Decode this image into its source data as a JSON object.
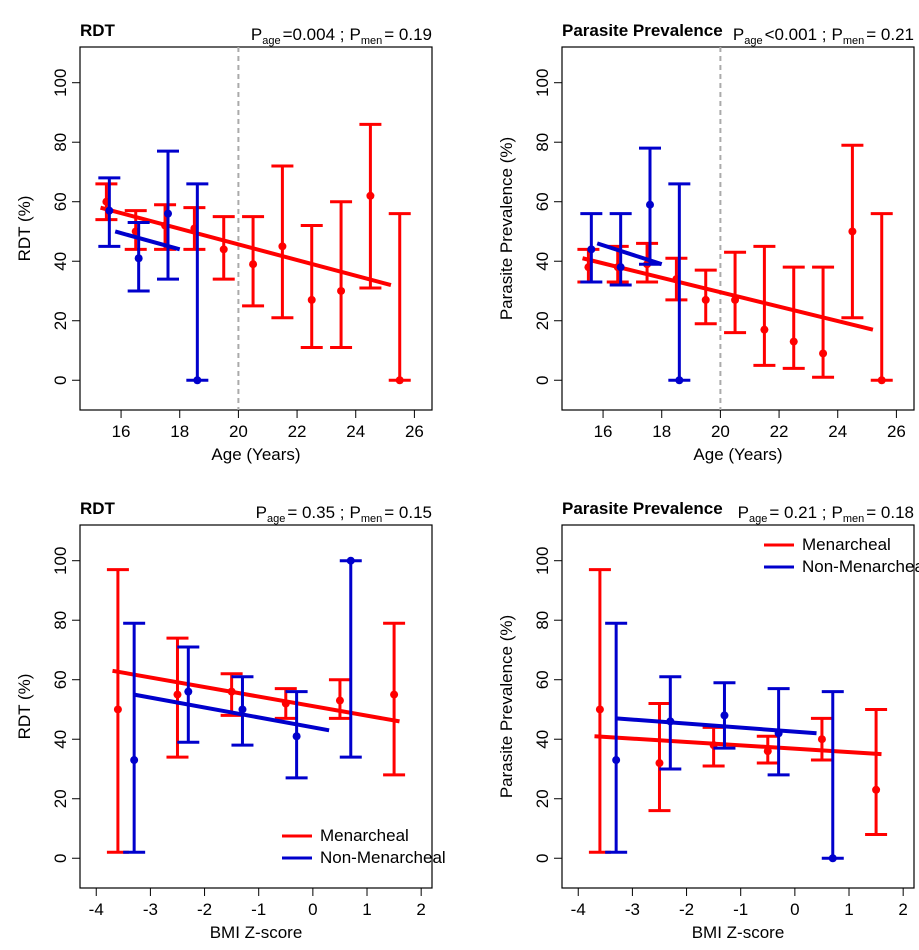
{
  "chart_data": [
    {
      "type": "errorbar",
      "title": "RDT",
      "annotation": [
        {
          "symbol": "P",
          "subscript": "age",
          "text": "=0.004 ;"
        },
        {
          "symbol": "P",
          "subscript": "men",
          "text": "= 0.19"
        }
      ],
      "x_label": "Age (Years)",
      "y_label": "RDT (%)",
      "xlim": [
        14.6,
        26.6
      ],
      "ylim": [
        -10,
        112
      ],
      "xticks": [
        16,
        18,
        20,
        22,
        24,
        26
      ],
      "yticks": [
        0,
        20,
        40,
        60,
        80,
        100
      ],
      "vline": 20,
      "legend": null,
      "series": [
        {
          "color": "#ff0000",
          "x": [
            15.5,
            16.5,
            17.5,
            18.5,
            19.5,
            20.5,
            21.5,
            22.5,
            23.5,
            24.5,
            25.5
          ],
          "values": [
            60,
            50,
            52,
            51,
            44,
            39,
            45,
            27,
            30,
            62,
            0
          ],
          "lower": [
            54,
            44,
            44,
            44,
            34,
            25,
            21,
            11,
            11,
            31,
            0
          ],
          "upper": [
            66,
            57,
            59,
            58,
            55,
            55,
            72,
            52,
            60,
            86,
            56
          ],
          "fit_x": [
            15.3,
            25.2
          ],
          "fit_y": [
            58,
            32
          ]
        },
        {
          "color": "#0000cc",
          "x": [
            15.6,
            16.6,
            17.6,
            18.6
          ],
          "values": [
            57,
            41,
            56,
            0
          ],
          "lower": [
            45,
            30,
            34,
            0
          ],
          "upper": [
            68,
            53,
            77,
            66
          ],
          "fit_x": [
            15.8,
            18
          ],
          "fit_y": [
            50,
            44
          ]
        }
      ]
    },
    {
      "type": "errorbar",
      "title": "Parasite Prevalence",
      "annotation": [
        {
          "symbol": "P",
          "subscript": "age",
          "text": "<0.001 ;"
        },
        {
          "symbol": "P",
          "subscript": "men",
          "text": "= 0.21"
        }
      ],
      "x_label": "Age (Years)",
      "y_label": "Parasite Prevalence (%)",
      "xlim": [
        14.6,
        26.6
      ],
      "ylim": [
        -10,
        112
      ],
      "xticks": [
        16,
        18,
        20,
        22,
        24,
        26
      ],
      "yticks": [
        0,
        20,
        40,
        60,
        80,
        100
      ],
      "vline": 20,
      "legend": null,
      "series": [
        {
          "color": "#ff0000",
          "x": [
            15.5,
            16.5,
            17.5,
            18.5,
            19.5,
            20.5,
            21.5,
            22.5,
            23.5,
            24.5,
            25.5
          ],
          "values": [
            38,
            38,
            39,
            34,
            27,
            27,
            17,
            13,
            9,
            50,
            0
          ],
          "lower": [
            33,
            33,
            33,
            27,
            19,
            16,
            5,
            4,
            1,
            21,
            0
          ],
          "upper": [
            44,
            45,
            46,
            41,
            37,
            43,
            45,
            38,
            38,
            79,
            56
          ],
          "fit_x": [
            15.3,
            25.2
          ],
          "fit_y": [
            41,
            17
          ]
        },
        {
          "color": "#0000cc",
          "x": [
            15.6,
            16.6,
            17.6,
            18.6
          ],
          "values": [
            44,
            38,
            59,
            0
          ],
          "lower": [
            33,
            32,
            39,
            0
          ],
          "upper": [
            56,
            56,
            78,
            66
          ],
          "fit_x": [
            15.8,
            18
          ],
          "fit_y": [
            46,
            39
          ]
        }
      ]
    },
    {
      "type": "errorbar",
      "title": "RDT",
      "annotation": [
        {
          "symbol": "P",
          "subscript": "age",
          "text": "= 0.35 ;"
        },
        {
          "symbol": "P",
          "subscript": "men",
          "text": "= 0.15"
        }
      ],
      "x_label": "BMI Z-score",
      "y_label": "RDT (%)",
      "xlim": [
        -4.3,
        2.2
      ],
      "ylim": [
        -10,
        112
      ],
      "xticks": [
        -4,
        -3,
        -2,
        -1,
        0,
        1,
        2
      ],
      "yticks": [
        0,
        20,
        40,
        60,
        80,
        100
      ],
      "vline": null,
      "legend": "bottom-right",
      "series": [
        {
          "name": "Menarcheal",
          "color": "#ff0000",
          "x": [
            -3.6,
            -2.5,
            -1.5,
            -0.5,
            0.5,
            1.5
          ],
          "values": [
            50,
            55,
            56,
            52,
            53,
            55
          ],
          "lower": [
            2,
            34,
            48,
            47,
            47,
            28
          ],
          "upper": [
            97,
            74,
            62,
            57,
            60,
            79
          ],
          "fit_x": [
            -3.7,
            1.6
          ],
          "fit_y": [
            63,
            46
          ]
        },
        {
          "name": "Non-Menarcheal",
          "color": "#0000cc",
          "x": [
            -3.3,
            -2.3,
            -1.3,
            -0.3,
            0.7
          ],
          "values": [
            33,
            56,
            50,
            41,
            100
          ],
          "lower": [
            2,
            39,
            38,
            27,
            34
          ],
          "upper": [
            79,
            71,
            61,
            56,
            100
          ],
          "fit_x": [
            -3.3,
            0.3
          ],
          "fit_y": [
            55,
            43
          ]
        }
      ]
    },
    {
      "type": "errorbar",
      "title": "Parasite Prevalence",
      "annotation": [
        {
          "symbol": "P",
          "subscript": "age",
          "text": "= 0.21 ;"
        },
        {
          "symbol": "P",
          "subscript": "men",
          "text": "= 0.18"
        }
      ],
      "x_label": "BMI Z-score",
      "y_label": "Parasite Prevalence (%)",
      "xlim": [
        -4.3,
        2.2
      ],
      "ylim": [
        -10,
        112
      ],
      "xticks": [
        -4,
        -3,
        -2,
        -1,
        0,
        1,
        2
      ],
      "yticks": [
        0,
        20,
        40,
        60,
        80,
        100
      ],
      "vline": null,
      "legend": "top-right",
      "series": [
        {
          "name": "Menarcheal",
          "color": "#ff0000",
          "x": [
            -3.6,
            -2.5,
            -1.5,
            -0.5,
            0.5,
            1.5
          ],
          "values": [
            50,
            32,
            38,
            36,
            40,
            23
          ],
          "lower": [
            2,
            16,
            31,
            32,
            33,
            8
          ],
          "upper": [
            97,
            52,
            44,
            41,
            47,
            50
          ],
          "fit_x": [
            -3.7,
            1.6
          ],
          "fit_y": [
            41,
            35
          ]
        },
        {
          "name": "Non-Menarcheal",
          "color": "#0000cc",
          "x": [
            -3.3,
            -2.3,
            -1.3,
            -0.3,
            0.7
          ],
          "values": [
            33,
            46,
            48,
            42,
            0
          ],
          "lower": [
            2,
            30,
            37,
            28,
            0
          ],
          "upper": [
            79,
            61,
            59,
            57,
            56
          ],
          "fit_x": [
            -3.3,
            0.4
          ],
          "fit_y": [
            47,
            42
          ]
        }
      ]
    }
  ]
}
